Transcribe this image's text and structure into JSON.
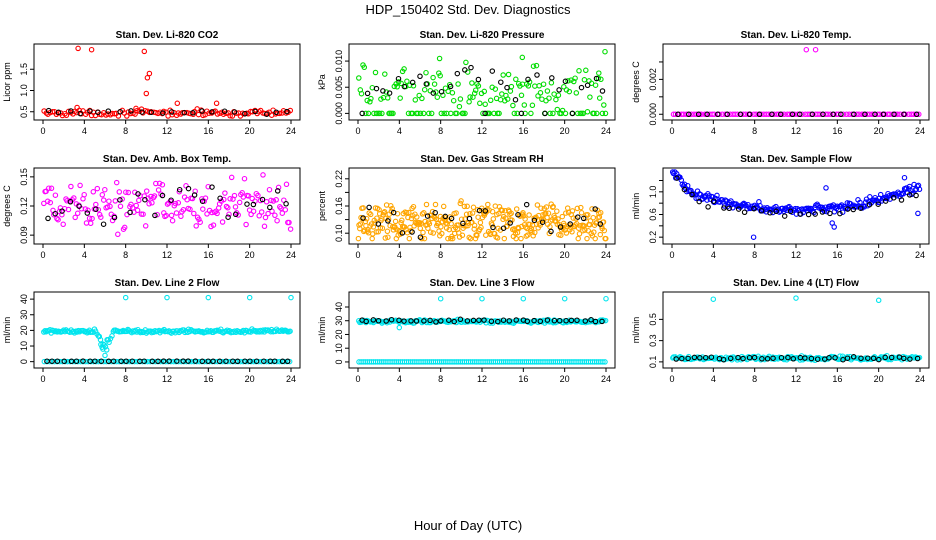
{
  "title": "HDP_150402  Std. Dev. Diagnostics",
  "xlabel": "Hour of Day (UTC)",
  "colors": {
    "black": "#000000",
    "red": "#ff0000",
    "green": "#00dd00",
    "magenta": "#ff00ff",
    "orange": "#ffa500",
    "blue": "#0000ff",
    "cyan": "#00e5ee"
  },
  "chart_data": [
    {
      "type": "scatter",
      "title": "Stan. Dev. Li-820 CO2",
      "ylabel": "Licor ppm",
      "xlim": [
        0,
        24
      ],
      "ylim": [
        0.4,
        2.0
      ],
      "xticks": [
        0,
        4,
        8,
        12,
        16,
        20,
        24
      ],
      "yticks": [
        0.5,
        1.0,
        1.5
      ],
      "ytick_labels": [
        "0.5",
        "1.0",
        "1.5"
      ],
      "series": [
        {
          "name": "primary",
          "color": "red",
          "base": 0.47,
          "spread": 0.05,
          "n": 120,
          "lo": 0.4,
          "hi": 2.0,
          "extra": [
            [
              3.4,
              1.99
            ],
            [
              4.7,
              1.96
            ],
            [
              9.8,
              1.92
            ],
            [
              10.1,
              1.3
            ],
            [
              10.3,
              1.4
            ],
            [
              10.0,
              0.93
            ],
            [
              13.0,
              0.7
            ],
            [
              16.8,
              0.7
            ],
            [
              3.3,
              0.6
            ],
            [
              9.0,
              0.58
            ]
          ]
        },
        {
          "name": "secondary",
          "color": "black",
          "base": 0.49,
          "spread": 0.03,
          "n": 24,
          "lo": 0.4,
          "hi": 2.0
        }
      ]
    },
    {
      "type": "scatter",
      "title": "Stan. Dev. Li-820 Pressure",
      "ylabel": "kPa",
      "xlim": [
        0,
        24
      ],
      "ylim": [
        -0.0005,
        0.0125
      ],
      "xticks": [
        0,
        4,
        8,
        12,
        16,
        20,
        24
      ],
      "yticks": [
        0.0,
        0.005,
        0.01
      ],
      "ytick_labels": [
        "0.000",
        "0.005",
        "0.010"
      ],
      "series": [
        {
          "name": "primary",
          "color": "green",
          "base": 0.0048,
          "spread": 0.0028,
          "n": 180,
          "lo": 0.0,
          "hi": 0.0125,
          "zero_frac": 0.35,
          "extra": [
            [
              7.9,
              0.0105
            ],
            [
              15.9,
              0.0107
            ],
            [
              23.9,
              0.0118
            ],
            [
              23.3,
              0.0077
            ]
          ]
        },
        {
          "name": "secondary",
          "color": "black",
          "base": 0.0055,
          "spread": 0.0022,
          "n": 34,
          "lo": 0.0,
          "hi": 0.0125,
          "zero_frac": 0.2
        }
      ]
    },
    {
      "type": "scatter",
      "title": "Stan. Dev. Li-820 Temp.",
      "ylabel": "degrees C",
      "xlim": [
        0,
        24
      ],
      "ylim": [
        -0.0001,
        0.0038
      ],
      "xticks": [
        0,
        4,
        8,
        12,
        16,
        20,
        24
      ],
      "yticks": [
        0.0,
        0.001,
        0.002,
        0.003
      ],
      "ytick_labels": [
        "0.000",
        "",
        "0.002",
        ""
      ],
      "series": [
        {
          "name": "primary",
          "color": "magenta",
          "base": 0.0,
          "spread": 0.0,
          "n": 96,
          "lo": 0.0,
          "hi": 0.0038,
          "extra": [
            [
              13.0,
              0.0037
            ],
            [
              13.9,
              0.0037
            ]
          ]
        },
        {
          "name": "secondary",
          "color": "black",
          "base": 0.0,
          "spread": 0.0,
          "n": 24,
          "lo": 0.0,
          "hi": 0.0038
        }
      ]
    },
    {
      "type": "scatter",
      "title": "Stan. Dev. Amb. Box Temp.",
      "ylabel": "degrees C",
      "xlim": [
        0,
        24
      ],
      "ylim": [
        0.085,
        0.155
      ],
      "xticks": [
        0,
        4,
        8,
        12,
        16,
        20,
        24
      ],
      "yticks": [
        0.09,
        0.12,
        0.15
      ],
      "ytick_labels": [
        "0.09",
        "0.12",
        "0.15"
      ],
      "series": [
        {
          "name": "primary",
          "color": "magenta",
          "base": 0.12,
          "spread": 0.017,
          "n": 190,
          "lo": 0.088,
          "hi": 0.152
        },
        {
          "name": "secondary",
          "color": "black",
          "base": 0.12,
          "spread": 0.013,
          "n": 30,
          "lo": 0.088,
          "hi": 0.152
        }
      ]
    },
    {
      "type": "scatter",
      "title": "Stan. Dev. Gas Stream RH",
      "ylabel": "percent",
      "xlim": [
        0,
        24
      ],
      "ylim": [
        0.085,
        0.235
      ],
      "xticks": [
        0,
        4,
        8,
        12,
        16,
        20,
        24
      ],
      "yticks": [
        0.1,
        0.13,
        0.16,
        0.19,
        0.22
      ],
      "ytick_labels": [
        "0.10",
        "",
        "0.16",
        "",
        "0.22"
      ],
      "series": [
        {
          "name": "primary",
          "color": "orange",
          "base": 0.125,
          "spread": 0.03,
          "n": 360,
          "lo": 0.088,
          "hi": 0.232
        },
        {
          "name": "secondary",
          "color": "black",
          "base": 0.13,
          "spread": 0.025,
          "n": 30,
          "lo": 0.088,
          "hi": 0.232
        }
      ]
    },
    {
      "type": "scatter",
      "title": "Stan. Dev. Sample Flow",
      "ylabel": "ml/min",
      "xlim": [
        0,
        24
      ],
      "ylim": [
        0.15,
        1.35
      ],
      "xticks": [
        0,
        4,
        8,
        12,
        16,
        20,
        24
      ],
      "yticks": [
        0.2,
        0.4,
        0.6,
        0.8,
        1.0,
        1.2
      ],
      "ytick_labels": [
        "0.2",
        "",
        "0.6",
        "",
        "1.0",
        ""
      ],
      "series": [
        {
          "name": "primary",
          "color": "blue",
          "curve": "u",
          "spread": 0.06,
          "n": 230,
          "lo": 0.15,
          "hi": 1.35,
          "extra": [
            [
              7.9,
              0.2
            ],
            [
              15.7,
              0.38
            ],
            [
              15.5,
              0.45
            ],
            [
              14.9,
              1.07
            ],
            [
              22.5,
              1.25
            ],
            [
              23.8,
              0.62
            ]
          ]
        },
        {
          "name": "secondary",
          "color": "black",
          "curve": "u",
          "offset": -0.08,
          "spread": 0.05,
          "n": 32,
          "lo": 0.15,
          "hi": 1.35
        }
      ]
    },
    {
      "type": "scatter",
      "title": "Stan. Dev. Line 2 Flow",
      "ylabel": "ml/min",
      "xlim": [
        0,
        24
      ],
      "ylim": [
        -1.5,
        42
      ],
      "xticks": [
        0,
        4,
        8,
        12,
        16,
        20,
        24
      ],
      "yticks": [
        0,
        10,
        20,
        30,
        40
      ],
      "ytick_labels": [
        "0",
        "10",
        "20",
        "30",
        "40"
      ],
      "series": [
        {
          "name": "primary",
          "color": "cyan",
          "base": 19.5,
          "spread": 0.8,
          "n": 200,
          "lo": -1.0,
          "hi": 42,
          "dip": [
            5.0,
            6.8,
            6.0
          ],
          "zeros": 96,
          "extra": [
            [
              8.0,
              41
            ],
            [
              12.0,
              41
            ],
            [
              16.0,
              41
            ],
            [
              20.0,
              41
            ],
            [
              24.0,
              41
            ],
            [
              5.8,
              8
            ],
            [
              6.0,
              4
            ],
            [
              5.6,
              11
            ],
            [
              6.2,
              14
            ]
          ]
        },
        {
          "name": "secondary",
          "color": "black",
          "base": 0.3,
          "spread": 0.05,
          "n": 40,
          "lo": -1.0,
          "hi": 42
        }
      ]
    },
    {
      "type": "scatter",
      "title": "Stan. Dev. Line 3 Flow",
      "ylabel": "ml/min",
      "xlim": [
        0,
        24
      ],
      "ylim": [
        -1.5,
        48
      ],
      "xticks": [
        0,
        4,
        8,
        12,
        16,
        20,
        24
      ],
      "yticks": [
        0,
        10,
        20,
        30,
        40
      ],
      "ytick_labels": [
        "0",
        "10",
        "20",
        "30",
        "40"
      ],
      "series": [
        {
          "name": "primary",
          "color": "cyan",
          "base": 29.5,
          "spread": 0.9,
          "n": 200,
          "lo": -1.0,
          "hi": 48,
          "zeros": 120,
          "extra": [
            [
              8.0,
              46
            ],
            [
              12.0,
              46
            ],
            [
              16.0,
              46
            ],
            [
              20.0,
              46
            ],
            [
              24.0,
              46
            ],
            [
              4.0,
              25
            ]
          ]
        },
        {
          "name": "secondary",
          "color": "black",
          "base": 30.0,
          "spread": 0.6,
          "n": 40,
          "lo": -1.0,
          "hi": 48
        }
      ]
    },
    {
      "type": "scatter",
      "title": "Stan. Dev. Line 4 (LT) Flow",
      "ylabel": "ml/min",
      "xlim": [
        0,
        24
      ],
      "ylim": [
        0.08,
        0.72
      ],
      "xticks": [
        0,
        4,
        8,
        12,
        16,
        20,
        24
      ],
      "yticks": [
        0.1,
        0.3,
        0.5
      ],
      "ytick_labels": [
        "0.1",
        "0.3",
        "0.5"
      ],
      "series": [
        {
          "name": "primary",
          "color": "cyan",
          "base": 0.135,
          "spread": 0.012,
          "n": 200,
          "lo": 0.08,
          "hi": 0.72,
          "extra": [
            [
              4.0,
              0.69
            ],
            [
              12.0,
              0.7
            ],
            [
              20.0,
              0.68
            ]
          ]
        },
        {
          "name": "secondary",
          "color": "black",
          "base": 0.135,
          "spread": 0.008,
          "n": 40,
          "lo": 0.08,
          "hi": 0.72
        }
      ]
    }
  ]
}
